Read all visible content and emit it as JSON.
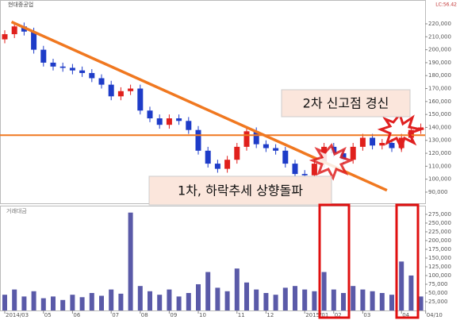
{
  "chart_data": {
    "type": "candlestick",
    "title": "현대중공업",
    "volume_title": "거래대금",
    "corner_note": "LC:56.42",
    "annotations": [
      "2차 신고점 경신",
      "1차, 하락추세 상향돌파"
    ],
    "up_color": "#e0201c",
    "down_color": "#1e3cc8",
    "volume_color": "#5a5aa8",
    "line_color": "#f07820",
    "open": [
      208000,
      212000,
      218000,
      214000,
      200000,
      190000,
      187000,
      186000,
      184000,
      182000,
      178000,
      173000,
      164000,
      168000,
      170000,
      153000,
      147000,
      142000,
      147000,
      145000,
      138000,
      122000,
      112000,
      108000,
      115000,
      125000,
      137000,
      127000,
      124000,
      122000,
      112000,
      104000,
      103000,
      112000,
      125000,
      120000,
      115000,
      125000,
      132000,
      126000,
      128000,
      124000,
      132000,
      138000
    ],
    "high": [
      215000,
      221000,
      221000,
      217000,
      203000,
      193000,
      190000,
      189000,
      187000,
      185000,
      181000,
      176000,
      171000,
      173000,
      173000,
      156000,
      150000,
      150000,
      150000,
      148000,
      141000,
      125000,
      115000,
      118000,
      128000,
      140000,
      140000,
      130000,
      127000,
      125000,
      115000,
      107000,
      115000,
      128000,
      128000,
      123000,
      128000,
      135000,
      135000,
      131000,
      131000,
      135000,
      141000,
      143000
    ],
    "low": [
      205000,
      209000,
      211000,
      197000,
      187000,
      184000,
      183000,
      181000,
      179000,
      175000,
      170000,
      161000,
      161000,
      165000,
      150000,
      144000,
      139000,
      139000,
      142000,
      135000,
      119000,
      109000,
      105000,
      105000,
      112000,
      122000,
      124000,
      121000,
      119000,
      109000,
      101000,
      100000,
      100000,
      109000,
      117000,
      112000,
      112000,
      122000,
      123000,
      123000,
      121000,
      121000,
      129000,
      135000
    ],
    "close": [
      212000,
      218000,
      214000,
      200000,
      190000,
      187000,
      186000,
      184000,
      182000,
      178000,
      173000,
      164000,
      168000,
      170000,
      153000,
      147000,
      142000,
      147000,
      145000,
      138000,
      122000,
      112000,
      108000,
      115000,
      125000,
      137000,
      127000,
      124000,
      122000,
      112000,
      104000,
      103000,
      112000,
      125000,
      120000,
      115000,
      125000,
      132000,
      126000,
      128000,
      124000,
      132000,
      138000,
      140000
    ],
    "volume": [
      45000,
      60000,
      40000,
      55000,
      35000,
      40000,
      30000,
      45000,
      38000,
      50000,
      42000,
      60000,
      48000,
      280000,
      70000,
      55000,
      45000,
      60000,
      40000,
      50000,
      75000,
      110000,
      65000,
      55000,
      120000,
      80000,
      60000,
      50000,
      45000,
      65000,
      70000,
      60000,
      55000,
      110000,
      60000,
      50000,
      70000,
      60000,
      55000,
      50000,
      45000,
      140000,
      100000,
      40000
    ],
    "xticks": [
      {
        "value": 0,
        "label": "2014/03"
      },
      {
        "value": 4,
        "label": "05"
      },
      {
        "value": 7,
        "label": "06"
      },
      {
        "value": 11,
        "label": "07"
      },
      {
        "value": 14,
        "label": "08"
      },
      {
        "value": 17,
        "label": "09"
      },
      {
        "value": 20,
        "label": "10"
      },
      {
        "value": 24,
        "label": "11"
      },
      {
        "value": 27,
        "label": "12"
      },
      {
        "value": 31,
        "label": "2015/01"
      },
      {
        "value": 34,
        "label": "02"
      },
      {
        "value": 37,
        "label": "03"
      },
      {
        "value": 41,
        "label": "04"
      },
      {
        "value": 43.5,
        "label": "04/10"
      }
    ],
    "ylim": [
      82000,
      233500
    ],
    "yticks": [
      {
        "value": 90000,
        "label": "90,000"
      },
      {
        "value": 100000,
        "label": "100,000"
      },
      {
        "value": 110000,
        "label": "110,000"
      },
      {
        "value": 120000,
        "label": "120,000"
      },
      {
        "value": 130000,
        "label": "130,000"
      },
      {
        "value": 140000,
        "label": "140,000"
      },
      {
        "value": 150000,
        "label": "150,000"
      },
      {
        "value": 160000,
        "label": "160,000"
      },
      {
        "value": 170000,
        "label": "170,000"
      },
      {
        "value": 180000,
        "label": "180,000"
      },
      {
        "value": 190000,
        "label": "190,000"
      },
      {
        "value": 200000,
        "label": "200,000"
      },
      {
        "value": 210000,
        "label": "210,000"
      },
      {
        "value": 220000,
        "label": "220,000"
      }
    ],
    "y2lim": [
      0,
      293000
    ],
    "y2ticks": [
      {
        "value": 25000,
        "label": "25,000"
      },
      {
        "value": 50000,
        "label": "50,000"
      },
      {
        "value": 75000,
        "label": "75,000"
      },
      {
        "value": 100000,
        "label": "100,000"
      },
      {
        "value": 125000,
        "label": "125,000"
      },
      {
        "value": 150000,
        "label": "150,000"
      },
      {
        "value": 175000,
        "label": "175,000"
      },
      {
        "value": 200000,
        "label": "200,000"
      },
      {
        "value": 225000,
        "label": "225,000"
      },
      {
        "value": 250000,
        "label": "250,000"
      },
      {
        "value": 275000,
        "label": "275,000"
      }
    ],
    "horizontal_line": 134000,
    "trendline": {
      "x": [
        0.7,
        39.5
      ],
      "y": [
        221500,
        91400
      ]
    }
  }
}
